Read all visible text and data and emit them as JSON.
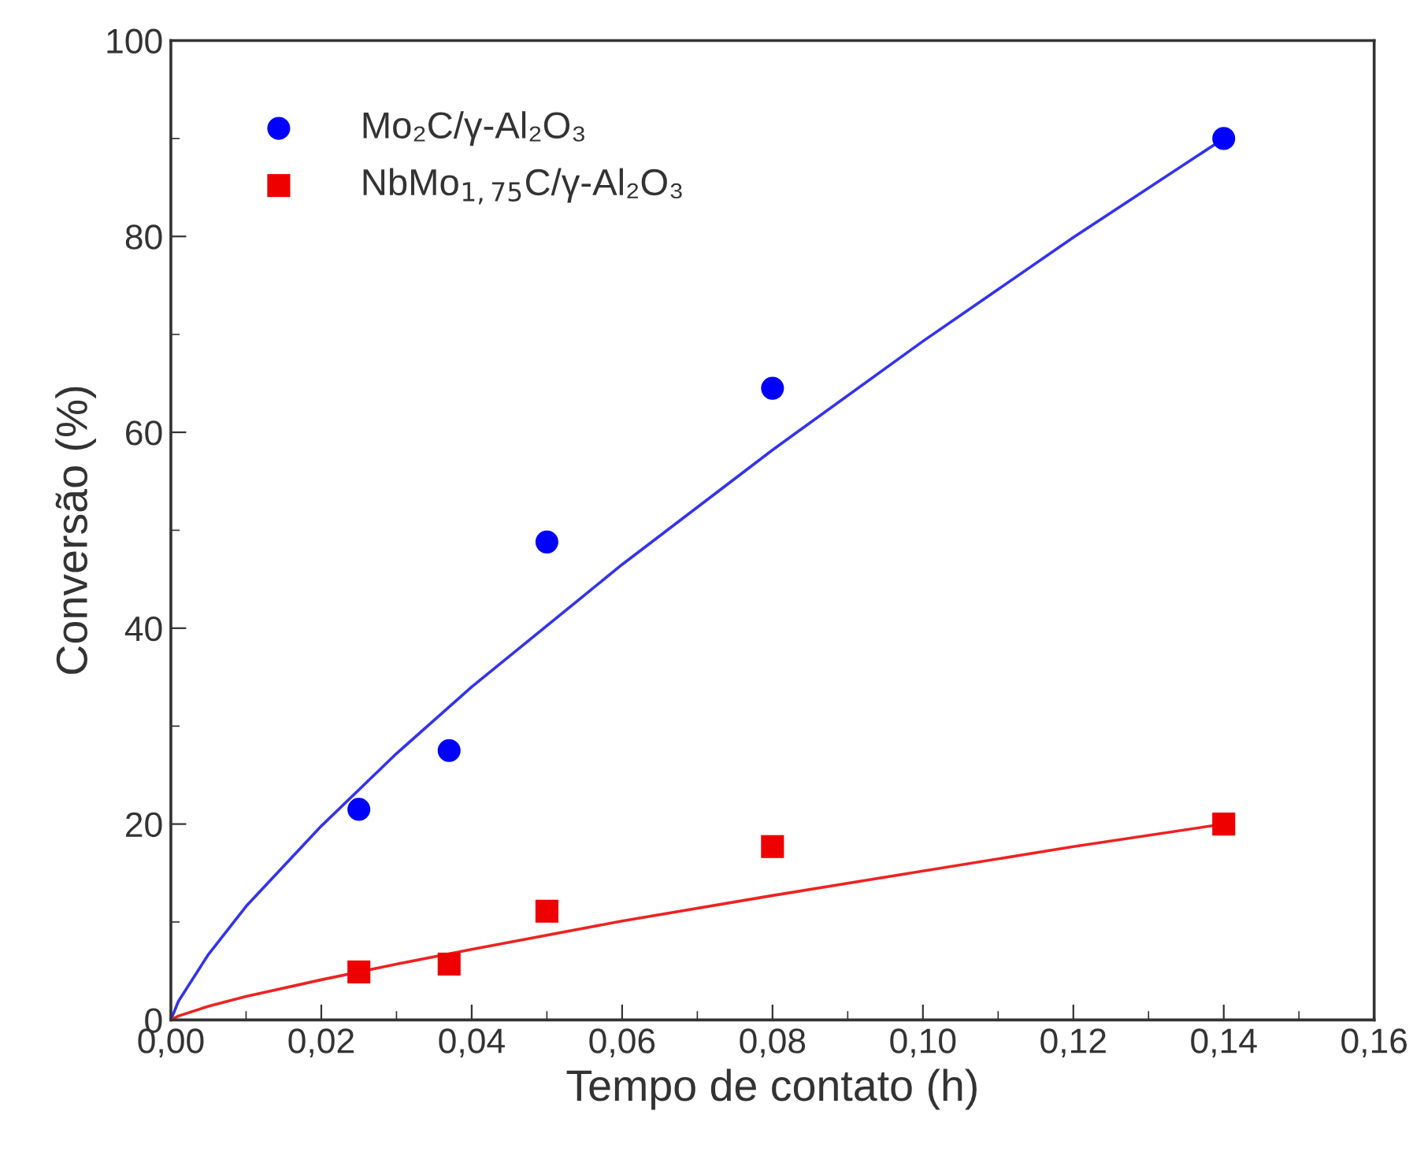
{
  "chart_data": {
    "type": "scatter",
    "xlabel": "Tempo de contato (h)",
    "ylabel": "Conversão (%)",
    "xlim": [
      0,
      0.16
    ],
    "ylim": [
      0,
      100
    ],
    "xticks": [
      {
        "value": 0,
        "label": "0,00"
      },
      {
        "value": 0.02,
        "label": "0,02"
      },
      {
        "value": 0.04,
        "label": "0,04"
      },
      {
        "value": 0.06,
        "label": "0,06"
      },
      {
        "value": 0.08,
        "label": "0,08"
      },
      {
        "value": 0.1,
        "label": "0,10"
      },
      {
        "value": 0.12,
        "label": "0,12"
      },
      {
        "value": 0.14,
        "label": "0,14"
      },
      {
        "value": 0.16,
        "label": "0,16"
      }
    ],
    "yticks": [
      0,
      20,
      40,
      60,
      80,
      100
    ],
    "grid": false,
    "legend": "top left",
    "series": [
      {
        "name": "Mo₂C/γ-Al₂O₃",
        "marker": "circle",
        "color": "#0000ff",
        "x": [
          0.025,
          0.037,
          0.05,
          0.08,
          0.14
        ],
        "values": [
          21.5,
          27.5,
          48.8,
          64.5,
          90
        ]
      },
      {
        "name": "NbMo$_{1,75}$C/γ-Al₂O₃",
        "marker": "square",
        "color": "#ee0000",
        "x": [
          0.025,
          0.037,
          0.05,
          0.08,
          0.14
        ],
        "values": [
          4.9,
          5.7,
          11.1,
          17.7,
          20
        ]
      },
      {
        "type": "line",
        "marker": "none",
        "line_style": "solid",
        "color": "#3333ee",
        "x": [
          0,
          0.001,
          0.005,
          0.01,
          0.02,
          0.03,
          0.04,
          0.06,
          0.08,
          0.1,
          0.12,
          0.14
        ],
        "values": [
          0,
          1.9,
          6.7,
          11.6,
          19.8,
          27.2,
          34.0,
          46.5,
          58.2,
          69.3,
          79.9,
          90
        ]
      },
      {
        "type": "line",
        "marker": "none",
        "line_style": "solid",
        "color": "#ee2222",
        "x": [
          0,
          0.001,
          0.005,
          0.01,
          0.02,
          0.03,
          0.04,
          0.06,
          0.08,
          0.1,
          0.12,
          0.14
        ],
        "values": [
          0,
          0.4,
          1.4,
          2.4,
          4.1,
          5.7,
          7.2,
          10.1,
          12.7,
          15.2,
          17.7,
          20
        ]
      }
    ]
  }
}
